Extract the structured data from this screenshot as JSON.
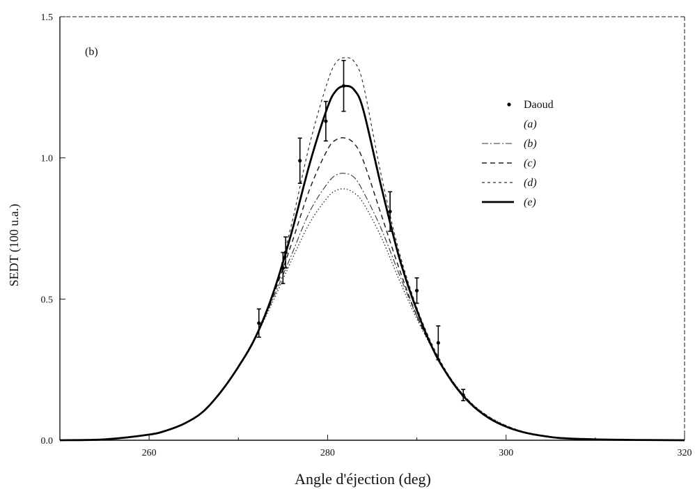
{
  "chart_data": {
    "type": "line",
    "panel_label": "(b)",
    "xlabel": "Angle d'éjection (deg)",
    "ylabel": "SEDT (100 u.a.)",
    "xlim": [
      250,
      320
    ],
    "ylim": [
      0,
      1.5
    ],
    "x_ticks": [
      260,
      280,
      300,
      320
    ],
    "y_ticks": [
      0.0,
      0.5,
      1.0,
      1.5
    ],
    "y_tick_labels": [
      "0.0",
      "0.5",
      "1.0",
      "1.5"
    ],
    "grid": false,
    "legend_position": "right",
    "center_angle": 281.8,
    "x": [
      250,
      255,
      260,
      262,
      264,
      266,
      268,
      270,
      272,
      274,
      276,
      278,
      280,
      281,
      282,
      283,
      284,
      286,
      288,
      290,
      292,
      294,
      296,
      298,
      300,
      302,
      304,
      306,
      310,
      315,
      320
    ],
    "series": [
      {
        "name": "(a)",
        "style": "dotted",
        "values": [
          0.0,
          0.003,
          0.02,
          0.035,
          0.06,
          0.1,
          0.17,
          0.26,
          0.37,
          0.5,
          0.64,
          0.77,
          0.86,
          0.885,
          0.89,
          0.875,
          0.84,
          0.72,
          0.57,
          0.43,
          0.31,
          0.21,
          0.135,
          0.085,
          0.052,
          0.03,
          0.017,
          0.009,
          0.003,
          0.001,
          0.0
        ]
      },
      {
        "name": "(b)",
        "style": "dashdot",
        "values": [
          0.0,
          0.003,
          0.02,
          0.035,
          0.06,
          0.1,
          0.17,
          0.26,
          0.37,
          0.51,
          0.66,
          0.81,
          0.91,
          0.94,
          0.945,
          0.93,
          0.88,
          0.75,
          0.59,
          0.44,
          0.31,
          0.205,
          0.13,
          0.08,
          0.048,
          0.028,
          0.016,
          0.008,
          0.003,
          0.001,
          0.0
        ]
      },
      {
        "name": "(c)",
        "style": "dashed",
        "values": [
          0.0,
          0.003,
          0.02,
          0.035,
          0.06,
          0.1,
          0.17,
          0.26,
          0.37,
          0.52,
          0.7,
          0.89,
          1.03,
          1.065,
          1.07,
          1.05,
          0.99,
          0.8,
          0.61,
          0.44,
          0.31,
          0.205,
          0.13,
          0.08,
          0.048,
          0.028,
          0.016,
          0.008,
          0.003,
          0.001,
          0.0
        ]
      },
      {
        "name": "(d)",
        "style": "shortdash",
        "values": [
          0.0,
          0.003,
          0.02,
          0.035,
          0.06,
          0.1,
          0.17,
          0.26,
          0.37,
          0.53,
          0.77,
          1.05,
          1.27,
          1.34,
          1.355,
          1.34,
          1.26,
          0.94,
          0.67,
          0.47,
          0.32,
          0.21,
          0.135,
          0.085,
          0.052,
          0.03,
          0.017,
          0.009,
          0.003,
          0.001,
          0.0
        ]
      },
      {
        "name": "(e)",
        "style": "solid-bold",
        "values": [
          0.0,
          0.003,
          0.02,
          0.035,
          0.06,
          0.1,
          0.17,
          0.26,
          0.37,
          0.53,
          0.74,
          0.98,
          1.18,
          1.24,
          1.255,
          1.24,
          1.17,
          0.9,
          0.65,
          0.46,
          0.31,
          0.205,
          0.13,
          0.08,
          0.048,
          0.028,
          0.016,
          0.008,
          0.003,
          0.001,
          0.0
        ]
      }
    ],
    "experimental": {
      "name": "Daoud",
      "points": [
        {
          "x": 272.3,
          "y": 0.415,
          "err": 0.05
        },
        {
          "x": 275.0,
          "y": 0.61,
          "err": 0.055
        },
        {
          "x": 275.3,
          "y": 0.665,
          "err": 0.055
        },
        {
          "x": 276.9,
          "y": 0.99,
          "err": 0.08
        },
        {
          "x": 279.8,
          "y": 1.13,
          "err": 0.07
        },
        {
          "x": 281.8,
          "y": 1.255,
          "err": 0.09
        },
        {
          "x": 287.0,
          "y": 0.81,
          "err": 0.07
        },
        {
          "x": 290.0,
          "y": 0.53,
          "err": 0.045
        },
        {
          "x": 292.4,
          "y": 0.345,
          "err": 0.06
        },
        {
          "x": 295.2,
          "y": 0.16,
          "err": 0.02
        }
      ]
    }
  }
}
